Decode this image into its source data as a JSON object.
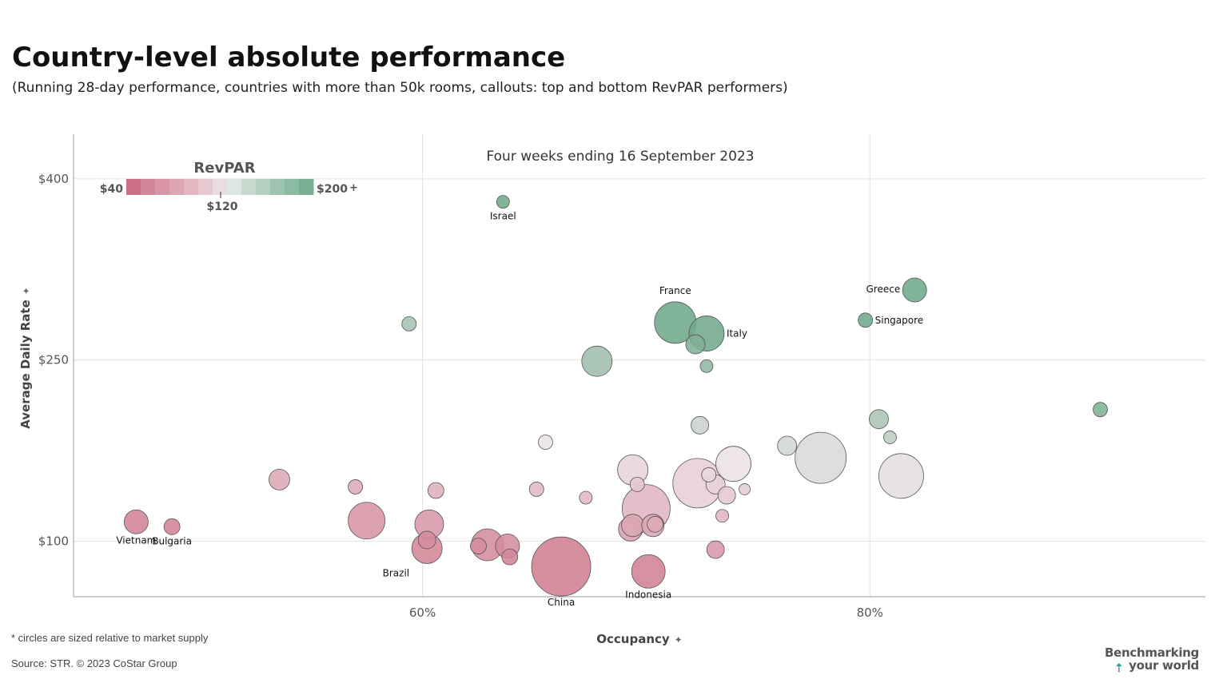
{
  "header": {
    "title": "Country-level absolute performance",
    "subtitle": "(Running 28-day performance, countries with more than 50k rooms, callouts: top and bottom RevPAR performers)"
  },
  "footer": {
    "footnote": "* circles are sized relative to market supply",
    "source": "Source: STR. © 2023 CoStar Group",
    "brand_line1": "Benchmarking",
    "brand_line2": "your world",
    "brand_arrow": "⇡"
  },
  "legend": {
    "title": "RevPAR",
    "min_label": "$40",
    "max_label": "$200",
    "max_suffix": "+",
    "mid_label": "$120",
    "colors": [
      "#cc6e85",
      "#d4859a",
      "#d995a7",
      "#dda6b3",
      "#e2b7c1",
      "#e7c9d0",
      "#eadde1",
      "#dde6e1",
      "#c5d9cf",
      "#b3cfc0",
      "#9fc3b1",
      "#8cbaa2",
      "#7aaf93"
    ]
  },
  "colors": {
    "axis": "#999999",
    "grid": "#e4e4e4",
    "stroke": "#555555",
    "tick_text": "#555555"
  },
  "chart_data": {
    "type": "scatter",
    "title": "Four weeks ending 16 September 2023",
    "xlabel": "Occupancy",
    "ylabel": "Average Daily Rate",
    "axis_pin": "✦",
    "xlim": [
      44.4,
      95.0
    ],
    "ylim": [
      54,
      437
    ],
    "xticks": [
      {
        "v": 60,
        "label": "60%"
      },
      {
        "v": 80,
        "label": "80%"
      }
    ],
    "yticks": [
      {
        "v": 100,
        "label": "$100"
      },
      {
        "v": 250,
        "label": "$250"
      },
      {
        "v": 400,
        "label": "$400"
      }
    ],
    "points": [
      {
        "occ": 47.2,
        "adr": 116,
        "size": 15,
        "revpar": 55,
        "label": "Vietnam"
      },
      {
        "occ": 48.8,
        "adr": 112,
        "size": 10,
        "revpar": 55,
        "label": "Bulgaria"
      },
      {
        "occ": 53.6,
        "adr": 151,
        "size": 13,
        "revpar": 81,
        "label": ""
      },
      {
        "occ": 57.0,
        "adr": 145,
        "size": 9,
        "revpar": 83,
        "label": ""
      },
      {
        "occ": 57.5,
        "adr": 117,
        "size": 23,
        "revpar": 67,
        "label": ""
      },
      {
        "occ": 59.4,
        "adr": 280,
        "size": 9,
        "revpar": 166,
        "label": ""
      },
      {
        "occ": 60.2,
        "adr": 94,
        "size": 19,
        "revpar": 57,
        "label": "Brazil"
      },
      {
        "occ": 60.2,
        "adr": 101,
        "size": 11,
        "revpar": 61,
        "label": ""
      },
      {
        "occ": 60.3,
        "adr": 114,
        "size": 18,
        "revpar": 69,
        "label": ""
      },
      {
        "occ": 60.6,
        "adr": 142,
        "size": 10,
        "revpar": 86,
        "label": ""
      },
      {
        "occ": 62.5,
        "adr": 96,
        "size": 10,
        "revpar": 60,
        "label": ""
      },
      {
        "occ": 62.9,
        "adr": 97,
        "size": 20,
        "revpar": 61,
        "label": ""
      },
      {
        "occ": 63.8,
        "adr": 96,
        "size": 15,
        "revpar": 61,
        "label": ""
      },
      {
        "occ": 63.9,
        "adr": 87,
        "size": 10,
        "revpar": 56,
        "label": ""
      },
      {
        "occ": 63.6,
        "adr": 381,
        "size": 8,
        "revpar": 242,
        "label": "Israel"
      },
      {
        "occ": 65.1,
        "adr": 143,
        "size": 9,
        "revpar": 93,
        "label": ""
      },
      {
        "occ": 65.5,
        "adr": 182,
        "size": 9,
        "revpar": 119,
        "label": ""
      },
      {
        "occ": 66.2,
        "adr": 79,
        "size": 37,
        "revpar": 52,
        "label": "China"
      },
      {
        "occ": 67.3,
        "adr": 136,
        "size": 8,
        "revpar": 92,
        "label": ""
      },
      {
        "occ": 67.8,
        "adr": 249,
        "size": 19,
        "revpar": 169,
        "label": ""
      },
      {
        "occ": 69.3,
        "adr": 110,
        "size": 15,
        "revpar": 76,
        "label": ""
      },
      {
        "occ": 69.4,
        "adr": 113,
        "size": 14,
        "revpar": 79,
        "label": ""
      },
      {
        "occ": 69.4,
        "adr": 159,
        "size": 19,
        "revpar": 110,
        "label": ""
      },
      {
        "occ": 69.6,
        "adr": 147,
        "size": 9,
        "revpar": 102,
        "label": ""
      },
      {
        "occ": 70.0,
        "adr": 127,
        "size": 30,
        "revpar": 89,
        "label": ""
      },
      {
        "occ": 70.3,
        "adr": 113,
        "size": 14,
        "revpar": 79,
        "label": ""
      },
      {
        "occ": 70.4,
        "adr": 114,
        "size": 10,
        "revpar": 80,
        "label": ""
      },
      {
        "occ": 70.1,
        "adr": 75,
        "size": 21,
        "revpar": 53,
        "label": "Indonesia"
      },
      {
        "occ": 71.3,
        "adr": 281,
        "size": 26,
        "revpar": 200,
        "label": "France"
      },
      {
        "occ": 72.2,
        "adr": 263,
        "size": 12,
        "revpar": 190,
        "label": ""
      },
      {
        "occ": 72.4,
        "adr": 196,
        "size": 11,
        "revpar": 142,
        "label": ""
      },
      {
        "occ": 72.3,
        "adr": 148,
        "size": 31,
        "revpar": 107,
        "label": ""
      },
      {
        "occ": 72.7,
        "adr": 272,
        "size": 22,
        "revpar": 198,
        "label": "Italy"
      },
      {
        "occ": 72.7,
        "adr": 245,
        "size": 8,
        "revpar": 178,
        "label": ""
      },
      {
        "occ": 72.8,
        "adr": 155,
        "size": 9,
        "revpar": 113,
        "label": ""
      },
      {
        "occ": 73.1,
        "adr": 147,
        "size": 12,
        "revpar": 108,
        "label": ""
      },
      {
        "occ": 73.1,
        "adr": 93,
        "size": 11,
        "revpar": 68,
        "label": ""
      },
      {
        "occ": 73.4,
        "adr": 121,
        "size": 8,
        "revpar": 89,
        "label": ""
      },
      {
        "occ": 73.6,
        "adr": 138,
        "size": 11,
        "revpar": 102,
        "label": ""
      },
      {
        "occ": 73.9,
        "adr": 164,
        "size": 22,
        "revpar": 121,
        "label": ""
      },
      {
        "occ": 74.4,
        "adr": 143,
        "size": 7,
        "revpar": 106,
        "label": ""
      },
      {
        "occ": 76.3,
        "adr": 179,
        "size": 12,
        "revpar": 137,
        "label": ""
      },
      {
        "occ": 77.8,
        "adr": 169,
        "size": 32,
        "revpar": 131,
        "label": ""
      },
      {
        "occ": 79.8,
        "adr": 283,
        "size": 9,
        "revpar": 226,
        "label": "Singapore"
      },
      {
        "occ": 80.4,
        "adr": 201,
        "size": 12,
        "revpar": 162,
        "label": ""
      },
      {
        "occ": 80.9,
        "adr": 186,
        "size": 8,
        "revpar": 150,
        "label": ""
      },
      {
        "occ": 81.4,
        "adr": 154,
        "size": 28,
        "revpar": 125,
        "label": ""
      },
      {
        "occ": 82.0,
        "adr": 308,
        "size": 15,
        "revpar": 252,
        "label": "Greece"
      },
      {
        "occ": 90.3,
        "adr": 209,
        "size": 9,
        "revpar": 189,
        "label": ""
      }
    ]
  }
}
